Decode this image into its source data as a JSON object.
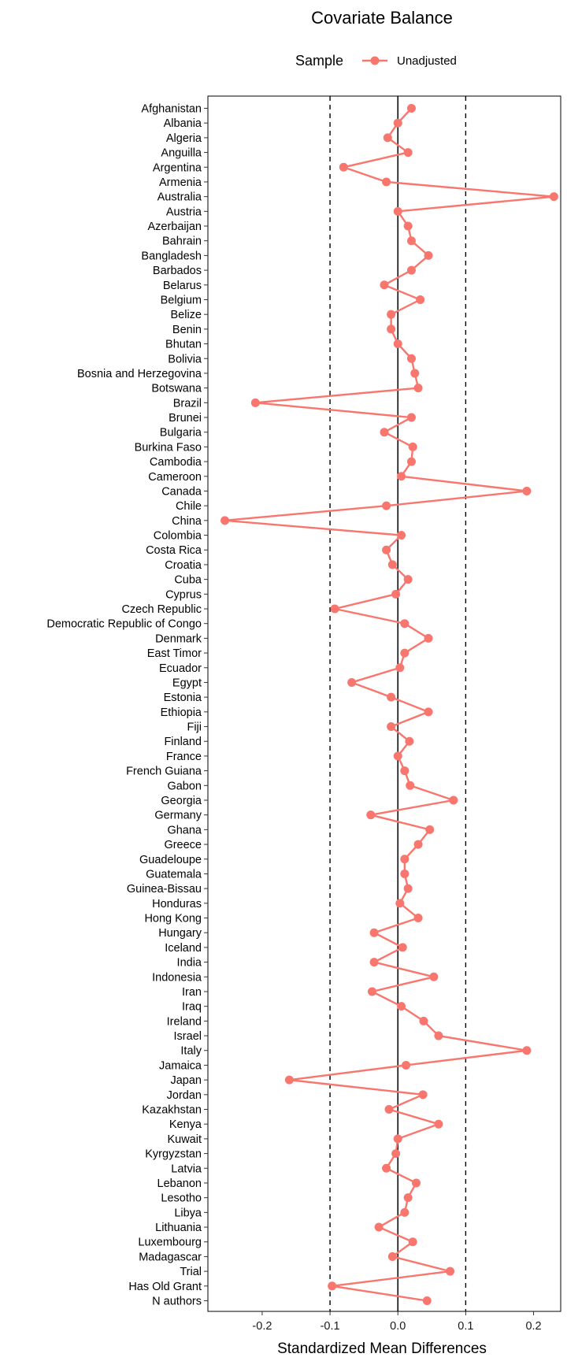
{
  "chart_data": {
    "type": "line",
    "title": "Covariate Balance",
    "legend": {
      "title": "Sample",
      "entries": [
        "Unadjusted"
      ],
      "position": "top"
    },
    "xlabel": "Standardized Mean Differences",
    "ylabel": "",
    "xlim": [
      -0.28,
      0.24
    ],
    "xticks": [
      -0.2,
      -0.1,
      0.0,
      0.1,
      0.2
    ],
    "xtick_labels": [
      "-0.2",
      "-0.1",
      "0.0",
      "0.1",
      "0.2"
    ],
    "reference_lines": {
      "solid": [
        0.0
      ],
      "dashed": [
        -0.1,
        0.1
      ]
    },
    "colors": {
      "series": "#F8766D",
      "axis": "#000000",
      "ticks": "#333333"
    },
    "categories": [
      "Afghanistan",
      "Albania",
      "Algeria",
      "Anguilla",
      "Argentina",
      "Armenia",
      "Australia",
      "Austria",
      "Azerbaijan",
      "Bahrain",
      "Bangladesh",
      "Barbados",
      "Belarus",
      "Belgium",
      "Belize",
      "Benin",
      "Bhutan",
      "Bolivia",
      "Bosnia and Herzegovina",
      "Botswana",
      "Brazil",
      "Brunei",
      "Bulgaria",
      "Burkina Faso",
      "Cambodia",
      "Cameroon",
      "Canada",
      "Chile",
      "China",
      "Colombia",
      "Costa Rica",
      "Croatia",
      "Cuba",
      "Cyprus",
      "Czech Republic",
      "Democratic Republic of Congo",
      "Denmark",
      "East Timor",
      "Ecuador",
      "Egypt",
      "Estonia",
      "Ethiopia",
      "Fiji",
      "Finland",
      "France",
      "French Guiana",
      "Gabon",
      "Georgia",
      "Germany",
      "Ghana",
      "Greece",
      "Guadeloupe",
      "Guatemala",
      "Guinea-Bissau",
      "Honduras",
      "Hong Kong",
      "Hungary",
      "Iceland",
      "India",
      "Indonesia",
      "Iran",
      "Iraq",
      "Ireland",
      "Israel",
      "Italy",
      "Jamaica",
      "Japan",
      "Jordan",
      "Kazakhstan",
      "Kenya",
      "Kuwait",
      "Kyrgyzstan",
      "Latvia",
      "Lebanon",
      "Lesotho",
      "Libya",
      "Lithuania",
      "Luxembourg",
      "Madagascar",
      "Trial",
      "Has Old Grant",
      "N authors"
    ],
    "series": [
      {
        "name": "Unadjusted",
        "values": [
          0.02,
          0.0,
          -0.015,
          0.015,
          -0.08,
          -0.017,
          0.23,
          0.0,
          0.015,
          0.02,
          0.045,
          0.02,
          -0.02,
          0.033,
          -0.01,
          -0.01,
          0.0,
          0.02,
          0.025,
          0.03,
          -0.21,
          0.02,
          -0.02,
          0.022,
          0.02,
          0.005,
          0.19,
          -0.017,
          -0.255,
          0.005,
          -0.017,
          -0.008,
          0.015,
          -0.003,
          -0.093,
          0.01,
          0.045,
          0.01,
          0.003,
          -0.068,
          -0.01,
          0.045,
          -0.01,
          0.017,
          0.0,
          0.01,
          0.018,
          0.082,
          -0.04,
          0.047,
          0.03,
          0.01,
          0.01,
          0.015,
          0.003,
          0.03,
          -0.035,
          0.007,
          -0.035,
          0.053,
          -0.038,
          0.005,
          0.038,
          0.06,
          0.19,
          0.012,
          -0.16,
          0.037,
          -0.013,
          0.06,
          0.0,
          -0.003,
          -0.017,
          0.027,
          0.015,
          0.01,
          -0.028,
          0.022,
          -0.008,
          0.077,
          -0.097,
          0.043
        ]
      }
    ]
  }
}
